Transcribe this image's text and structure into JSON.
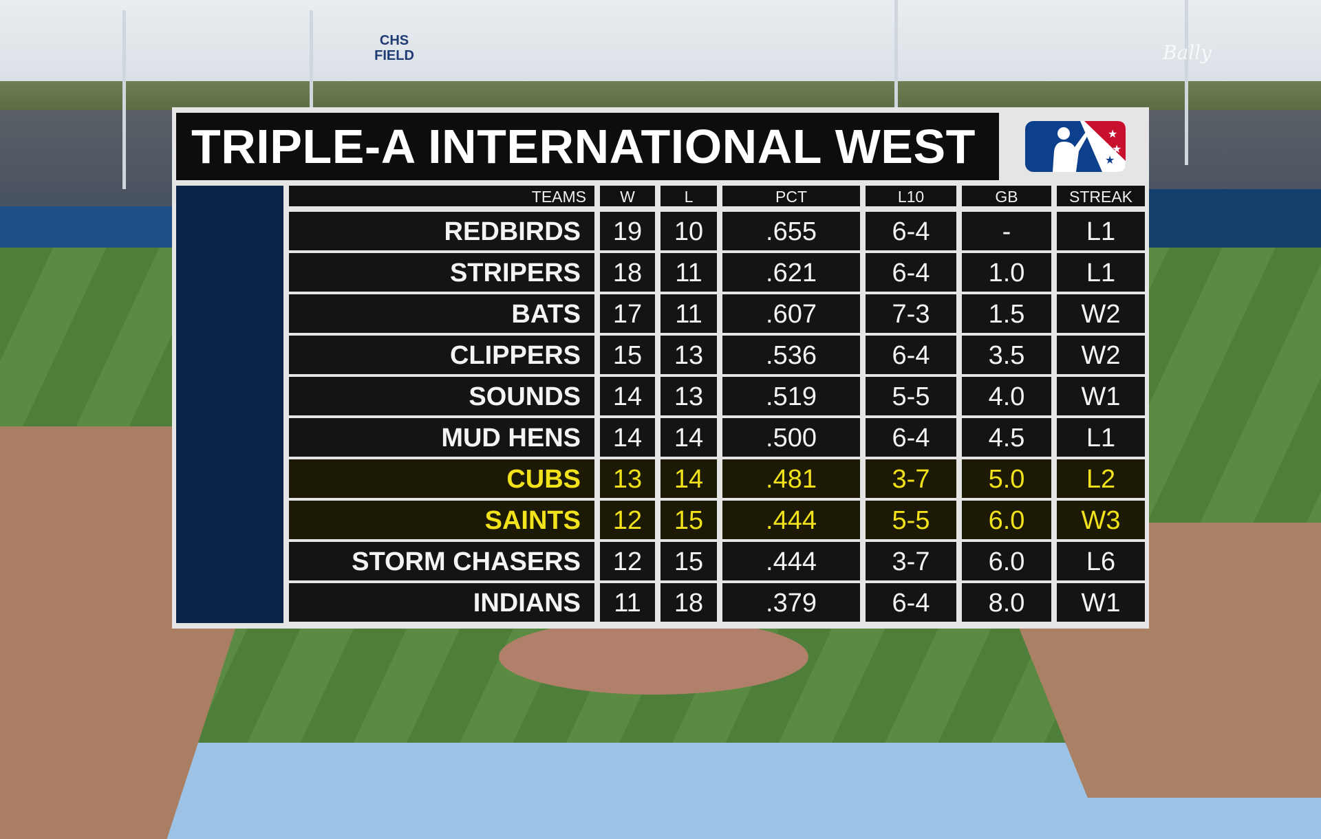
{
  "title": "TRIPLE-A INTERNATIONAL WEST",
  "field_sign": "CHS FIELD",
  "network_watermark": "Bally",
  "colors": {
    "panel_bg": "#e5e5e5",
    "row_bg": "#141414",
    "highlight_text": "#f2e21b",
    "side_bar": "#0b2447",
    "logo_blue": "#0c3f8c",
    "logo_red": "#c8102e"
  },
  "icons": {
    "league_logo": "milb-batter-stars-logo"
  },
  "columns": [
    "TEAMS",
    "W",
    "L",
    "PCT",
    "L10",
    "GB",
    "STREAK"
  ],
  "rows": [
    {
      "team": "REDBIRDS",
      "w": "19",
      "l": "10",
      "pct": ".655",
      "l10": "6-4",
      "gb": "-",
      "streak": "L1",
      "highlight": false
    },
    {
      "team": "STRIPERS",
      "w": "18",
      "l": "11",
      "pct": ".621",
      "l10": "6-4",
      "gb": "1.0",
      "streak": "L1",
      "highlight": false
    },
    {
      "team": "BATS",
      "w": "17",
      "l": "11",
      "pct": ".607",
      "l10": "7-3",
      "gb": "1.5",
      "streak": "W2",
      "highlight": false
    },
    {
      "team": "CLIPPERS",
      "w": "15",
      "l": "13",
      "pct": ".536",
      "l10": "6-4",
      "gb": "3.5",
      "streak": "W2",
      "highlight": false
    },
    {
      "team": "SOUNDS",
      "w": "14",
      "l": "13",
      "pct": ".519",
      "l10": "5-5",
      "gb": "4.0",
      "streak": "W1",
      "highlight": false
    },
    {
      "team": "MUD HENS",
      "w": "14",
      "l": "14",
      "pct": ".500",
      "l10": "6-4",
      "gb": "4.5",
      "streak": "L1",
      "highlight": false
    },
    {
      "team": "CUBS",
      "w": "13",
      "l": "14",
      "pct": ".481",
      "l10": "3-7",
      "gb": "5.0",
      "streak": "L2",
      "highlight": true
    },
    {
      "team": "SAINTS",
      "w": "12",
      "l": "15",
      "pct": ".444",
      "l10": "5-5",
      "gb": "6.0",
      "streak": "W3",
      "highlight": true
    },
    {
      "team": "STORM CHASERS",
      "w": "12",
      "l": "15",
      "pct": ".444",
      "l10": "3-7",
      "gb": "6.0",
      "streak": "L6",
      "highlight": false
    },
    {
      "team": "INDIANS",
      "w": "11",
      "l": "18",
      "pct": ".379",
      "l10": "6-4",
      "gb": "8.0",
      "streak": "W1",
      "highlight": false
    }
  ]
}
